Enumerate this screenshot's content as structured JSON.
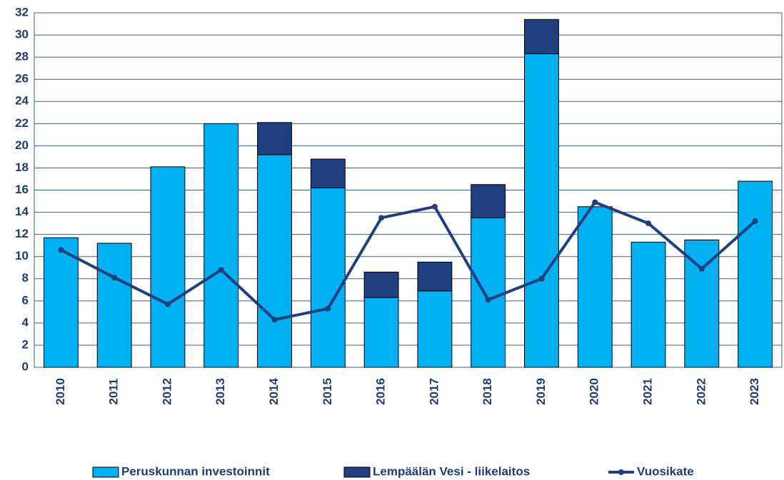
{
  "chart_data": {
    "type": "bar",
    "stacked": true,
    "categories": [
      "2010",
      "2011",
      "2012",
      "2013",
      "2014",
      "2015",
      "2016",
      "2017",
      "2018",
      "2019",
      "2020",
      "2021",
      "2022",
      "2023"
    ],
    "series": [
      {
        "name": "Peruskunnan investoinnit",
        "type": "bar",
        "color": "#00b0f0",
        "values": [
          11.7,
          11.2,
          18.1,
          22.0,
          19.2,
          16.2,
          6.3,
          6.9,
          13.5,
          28.3,
          14.5,
          11.3,
          11.5,
          16.8
        ]
      },
      {
        "name": "Lempäälän Vesi - liikelaitos",
        "type": "bar",
        "color": "#1f3f7f",
        "values": [
          0,
          0,
          0,
          0,
          2.9,
          2.6,
          2.3,
          2.6,
          3.0,
          3.1,
          0,
          0,
          0,
          0
        ]
      },
      {
        "name": "Vuosikate",
        "type": "line",
        "color": "#1f3f7f",
        "values": [
          10.6,
          8.1,
          5.7,
          8.8,
          4.3,
          5.3,
          13.5,
          14.5,
          6.1,
          8.0,
          14.9,
          13.0,
          8.9,
          13.2
        ]
      }
    ],
    "ylim": [
      0,
      32
    ],
    "yticks": [
      0,
      2,
      4,
      6,
      8,
      10,
      12,
      14,
      16,
      18,
      20,
      22,
      24,
      26,
      28,
      30,
      32
    ],
    "grid": true,
    "legend": "bottom"
  }
}
